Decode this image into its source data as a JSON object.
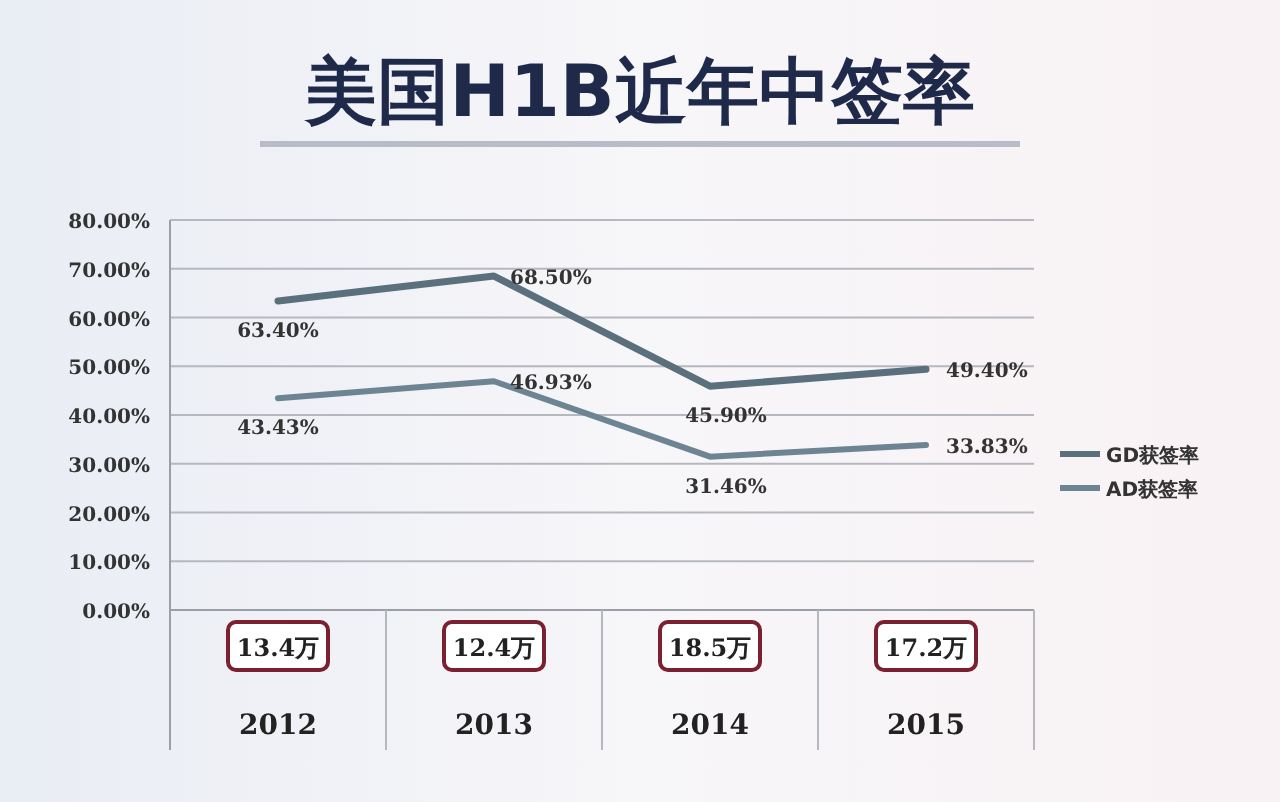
{
  "chart_data": {
    "type": "line",
    "title": "美国H1B近年中签率",
    "categories": [
      "2012",
      "2013",
      "2014",
      "2015"
    ],
    "series": [
      {
        "name": "GD获签率",
        "color": "#5b707d",
        "values": [
          63.4,
          68.5,
          45.9,
          49.4
        ],
        "value_labels": [
          "63.40%",
          "68.50%",
          "45.90%",
          "49.40%"
        ]
      },
      {
        "name": "AD获签率",
        "color": "#6d8592",
        "values": [
          43.43,
          46.93,
          31.46,
          33.83
        ],
        "value_labels": [
          "43.43%",
          "46.93%",
          "31.46%",
          "33.83%"
        ]
      }
    ],
    "ylim": [
      0,
      80
    ],
    "yticks": [
      {
        "value": 0,
        "label": "0.00%"
      },
      {
        "value": 10,
        "label": "10.00%"
      },
      {
        "value": 20,
        "label": "20.00%"
      },
      {
        "value": 30,
        "label": "30.00%"
      },
      {
        "value": 40,
        "label": "40.00%"
      },
      {
        "value": 50,
        "label": "50.00%"
      },
      {
        "value": 60,
        "label": "60.00%"
      },
      {
        "value": 70,
        "label": "70.00%"
      },
      {
        "value": 80,
        "label": "80.00%"
      }
    ],
    "grid": "y",
    "legend": "right",
    "marker": "none",
    "line_style": "solid",
    "annotations": [
      "13.4万",
      "12.4万",
      "18.5万",
      "17.2万"
    ]
  }
}
